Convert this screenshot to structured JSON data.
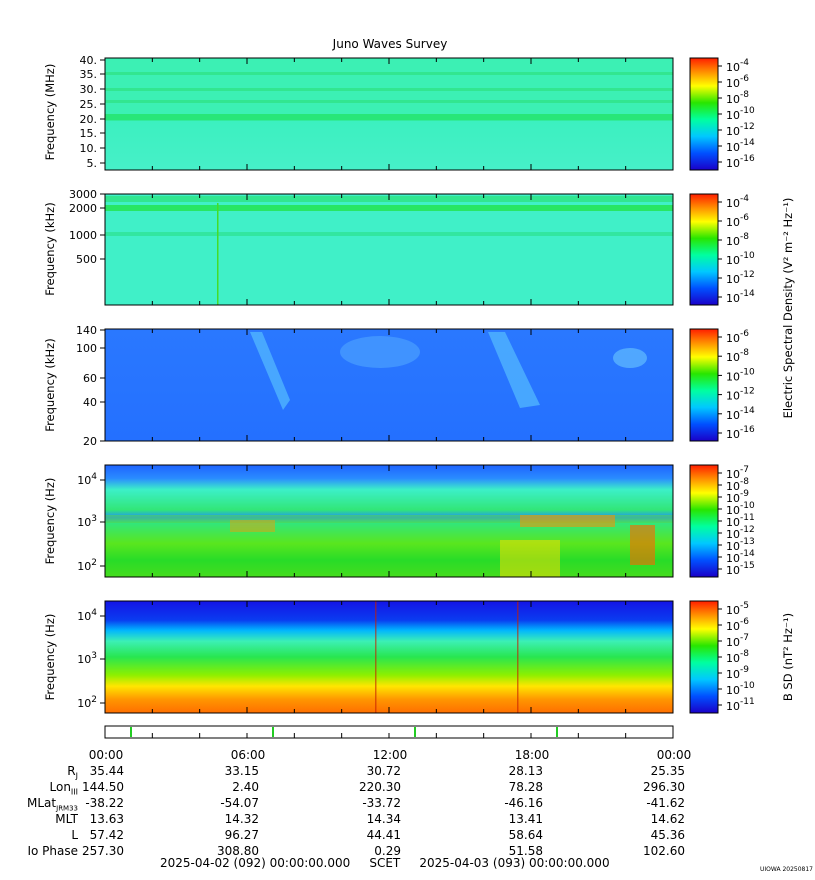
{
  "chart_data": {
    "type": "heatmap",
    "title": "Juno Waves Survey",
    "x_range": [
      "2025-04-02 00:00",
      "2025-04-03 00:00"
    ],
    "x_tick_labels": [
      "00:00",
      "06:00",
      "12:00",
      "18:00",
      "00:00"
    ],
    "panels": [
      {
        "ylabel": "Frequency (MHz)",
        "yticks": [
          "40.",
          "35.",
          "30.",
          "25.",
          "20.",
          "15.",
          "10.",
          "5."
        ],
        "scale": "linear",
        "colorbar": {
          "exponents": [
            "-4",
            "-6",
            "-8",
            "-10",
            "-12",
            "-14",
            "-16"
          ]
        }
      },
      {
        "ylabel": "Frequency (kHz)",
        "yticks": [
          "3000",
          "2000",
          "1000",
          "500"
        ],
        "scale": "log",
        "colorbar": {
          "exponents": [
            "-4",
            "-6",
            "-8",
            "-10",
            "-12",
            "-14"
          ]
        }
      },
      {
        "ylabel": "Frequency (kHz)",
        "yticks": [
          "140",
          "100",
          "60",
          "40",
          "20"
        ],
        "scale": "log",
        "colorbar": {
          "exponents": [
            "-6",
            "-8",
            "-10",
            "-12",
            "-14",
            "-16"
          ]
        }
      },
      {
        "ylabel": "Frequency (Hz)",
        "yticks": [
          "4",
          "3",
          "2"
        ],
        "scale": "log",
        "colorbar": {
          "exponents": [
            "-7",
            "-8",
            "-9",
            "-10",
            "-11",
            "-12",
            "-13",
            "-14",
            "-15"
          ]
        }
      },
      {
        "ylabel": "Frequency (Hz)",
        "yticks": [
          "4",
          "3",
          "2"
        ],
        "scale": "log",
        "colorbar": {
          "exponents": [
            "-5",
            "-6",
            "-7",
            "-8",
            "-9",
            "-10",
            "-11"
          ]
        }
      }
    ],
    "colorbar_labels": {
      "electric": "Electric Spectral Density (V² m⁻² Hz⁻¹)",
      "magnetic": "B SD (nT² Hz⁻¹)"
    }
  },
  "ephemeris": {
    "rows": [
      {
        "label": "Rj",
        "values": [
          "35.44",
          "33.15",
          "30.72",
          "28.13",
          "25.35"
        ]
      },
      {
        "label": "LonIII",
        "values": [
          "144.50",
          "2.40",
          "220.30",
          "78.28",
          "296.30"
        ]
      },
      {
        "label": "MLatJRM33",
        "values": [
          "-38.22",
          "-54.07",
          "-33.72",
          "-46.16",
          "-41.62"
        ]
      },
      {
        "label": "MLT",
        "values": [
          "13.63",
          "14.32",
          "14.34",
          "13.41",
          "14.62"
        ]
      },
      {
        "label": "L",
        "values": [
          "57.42",
          "96.27",
          "44.41",
          "58.64",
          "45.36"
        ]
      },
      {
        "label": "Io Phase",
        "values": [
          "257.30",
          "308.80",
          "0.29",
          "51.58",
          "102.60"
        ]
      }
    ],
    "display_labels": {
      "rj_main": "R",
      "rj_sub": "J",
      "lon_main": "Lon",
      "lon_sub": "III",
      "mlat_main": "MLat",
      "mlat_sub": "JRM33",
      "mlt": "MLT",
      "l": "L",
      "io": "Io Phase"
    }
  },
  "footer": {
    "start": "2025-04-02 (092) 00:00:00.000",
    "scet": "SCET",
    "end": "2025-04-03 (093) 00:00:00.000",
    "credit": "UIOWA 20250817",
    "base10": "10"
  }
}
